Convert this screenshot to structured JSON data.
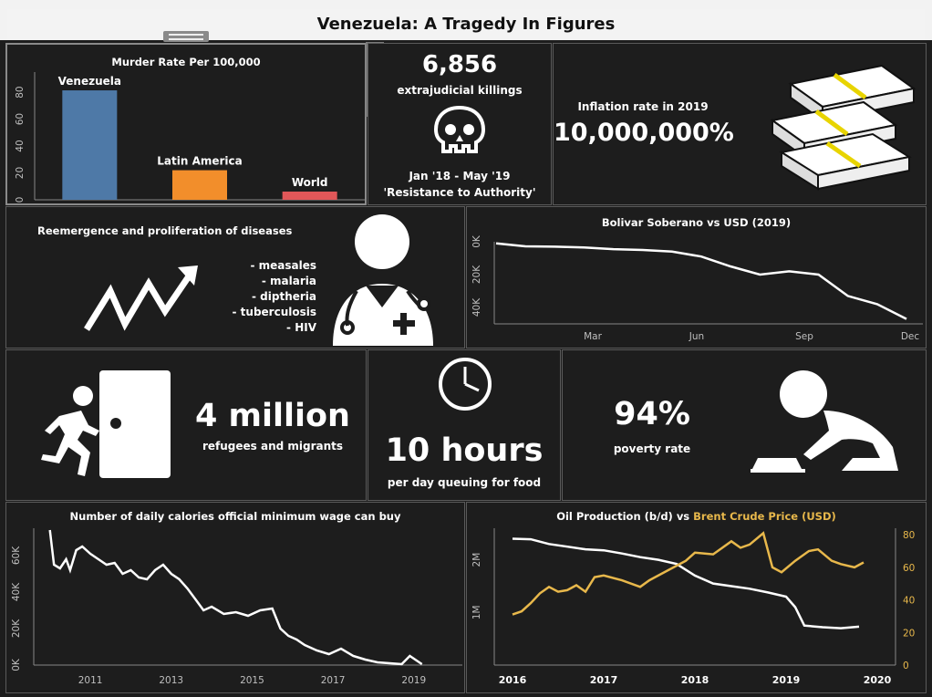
{
  "title": "Venezuela: A Tragedy In Figures",
  "colors": {
    "background": "#1d1d1d",
    "border": "#5a5a5a",
    "accent_gold": "#e8b84b",
    "venezuela": "#4e79a7",
    "latam": "#f28e2b",
    "world": "#e15759"
  },
  "toolbar": {
    "icons": [
      "close-icon",
      "popout-icon",
      "filter-icon",
      "dropdown-icon"
    ]
  },
  "murder": {
    "title": "Murder Rate Per 100,000",
    "chart_data": {
      "type": "bar",
      "title": "Murder Rate Per 100,000",
      "categories": [
        "Venezuela",
        "Latin America",
        "World"
      ],
      "values": [
        81.4,
        22,
        6.1
      ],
      "colors": [
        "#4e79a7",
        "#f28e2b",
        "#e15759"
      ],
      "ylim": [
        0,
        95
      ],
      "yticks": [
        0,
        20,
        40,
        60,
        80
      ],
      "grid": false
    }
  },
  "killings": {
    "value": "6,856",
    "label": "extrajudicial killings",
    "period": "Jan '18 - May '19",
    "note": "'Resistance to Authority'",
    "icon": "skull-icon"
  },
  "inflation": {
    "label": "Inflation rate in 2019",
    "value": "10,000,000%",
    "icon": "money-stack-icon"
  },
  "diseases": {
    "title": "Reemergence and proliferation of diseases",
    "items": [
      "- measales",
      "- malaria",
      "- diptheria",
      "- tuberculosis",
      "- HIV"
    ],
    "icons": [
      "zigzag-arrow-icon",
      "doctor-icon"
    ]
  },
  "bolivar": {
    "title": "Bolivar Soberano vs USD (2019)",
    "chart_data": {
      "type": "line",
      "title": "Bolivar Soberano vs USD (2019)",
      "x_ticks": [
        "Mar",
        "Jun",
        "Sep",
        "Dec"
      ],
      "y_ticks": [
        "0K",
        "20K",
        "40K"
      ],
      "ylim": [
        0,
        50000
      ],
      "y_inverted": true,
      "series": [
        {
          "x": [
            "Jan",
            "Feb",
            "Mar",
            "Apr",
            "May",
            "Jun",
            "Jul",
            "Aug",
            "Early Sep",
            "Sep",
            "Oct",
            "Early Nov",
            "Nov",
            "Late Nov",
            "Dec"
          ],
          "values": [
            1000,
            2800,
            3000,
            3500,
            4500,
            5000,
            6000,
            9000,
            15000,
            20000,
            18000,
            20000,
            33000,
            38000,
            47000
          ]
        }
      ]
    }
  },
  "refugees": {
    "value": "4 million",
    "label": "refugees and migrants",
    "icon": "running-exit-icon"
  },
  "queue": {
    "value": "10 hours",
    "label": "per day queuing for food",
    "icon": "clock-icon"
  },
  "poverty": {
    "value": "94%",
    "label": "poverty rate",
    "icon": "hungry-person-icon"
  },
  "calories": {
    "title": "Number of daily calories official minimum wage can buy",
    "chart_data": {
      "type": "line",
      "title": "Number of daily calories official minimum wage can buy",
      "x_ticks": [
        "2011",
        "2013",
        "2015",
        "2017",
        "2019"
      ],
      "y_ticks": [
        "0K",
        "20K",
        "40K",
        "60K"
      ],
      "xlim": [
        2009.6,
        2020.2
      ],
      "ylim": [
        0,
        75000
      ],
      "series": [
        {
          "x": [
            2010.0,
            2010.1,
            2010.25,
            2010.4,
            2010.5,
            2010.65,
            2010.8,
            2011.0,
            2011.2,
            2011.4,
            2011.6,
            2011.8,
            2012.0,
            2012.2,
            2012.4,
            2012.6,
            2012.8,
            2013.0,
            2013.2,
            2013.4,
            2013.6,
            2013.8,
            2014.0,
            2014.3,
            2014.6,
            2014.9,
            2015.2,
            2015.5,
            2015.7,
            2015.9,
            2016.1,
            2016.3,
            2016.6,
            2016.9,
            2017.2,
            2017.5,
            2017.8,
            2018.1,
            2018.4,
            2018.7,
            2018.9,
            2019.2
          ],
          "values": [
            74000,
            55000,
            53000,
            58000,
            52000,
            63000,
            65000,
            61000,
            58000,
            55000,
            56000,
            50000,
            52000,
            48000,
            47000,
            52000,
            55000,
            50000,
            47000,
            42000,
            36000,
            30000,
            32000,
            28000,
            29000,
            27000,
            30000,
            31000,
            20000,
            16000,
            14000,
            11000,
            8000,
            6000,
            9000,
            5000,
            3000,
            1500,
            1000,
            500,
            5000,
            500
          ]
        }
      ]
    }
  },
  "oil": {
    "title_prefix": "Oil Production (b/d) vs ",
    "title_highlight": "Brent Crude Price (USD)",
    "chart_data": {
      "type": "line",
      "title": "Oil Production (b/d) vs Brent Crude Price (USD)",
      "x_ticks": [
        "2016",
        "2017",
        "2018",
        "2019",
        "2020"
      ],
      "y_left_ticks": [
        "1M",
        "2M"
      ],
      "y_right_ticks": [
        "0",
        "20",
        "40",
        "60",
        "80"
      ],
      "xlim": [
        2015.8,
        2020.2
      ],
      "ylim_left": [
        0,
        2600000
      ],
      "ylim_right": [
        0,
        84
      ],
      "series": [
        {
          "name": "Oil Production (b/d)",
          "axis": "left",
          "color": "#ffffff",
          "x": [
            2016.0,
            2016.2,
            2016.4,
            2016.6,
            2016.8,
            2017.0,
            2017.2,
            2017.4,
            2017.6,
            2017.8,
            2018.0,
            2018.2,
            2018.4,
            2018.6,
            2018.8,
            2019.0,
            2019.1,
            2019.2,
            2019.4,
            2019.6,
            2019.8
          ],
          "values": [
            2400000,
            2390000,
            2300000,
            2250000,
            2200000,
            2180000,
            2120000,
            2050000,
            2000000,
            1920000,
            1700000,
            1550000,
            1500000,
            1450000,
            1380000,
            1300000,
            1100000,
            750000,
            720000,
            700000,
            730000
          ]
        },
        {
          "name": "Brent Crude Price (USD)",
          "axis": "right",
          "color": "#e8b84b",
          "x": [
            2016.0,
            2016.1,
            2016.2,
            2016.3,
            2016.4,
            2016.5,
            2016.6,
            2016.7,
            2016.8,
            2016.9,
            2017.0,
            2017.2,
            2017.4,
            2017.5,
            2017.7,
            2017.9,
            2018.0,
            2018.2,
            2018.4,
            2018.5,
            2018.6,
            2018.75,
            2018.85,
            2018.95,
            2019.1,
            2019.25,
            2019.35,
            2019.5,
            2019.6,
            2019.75,
            2019.85
          ],
          "values": [
            31,
            33,
            38,
            44,
            48,
            45,
            46,
            49,
            45,
            54,
            55,
            52,
            48,
            52,
            58,
            64,
            69,
            68,
            76,
            72,
            74,
            81,
            60,
            57,
            64,
            70,
            71,
            64,
            62,
            60,
            63
          ]
        }
      ]
    }
  }
}
